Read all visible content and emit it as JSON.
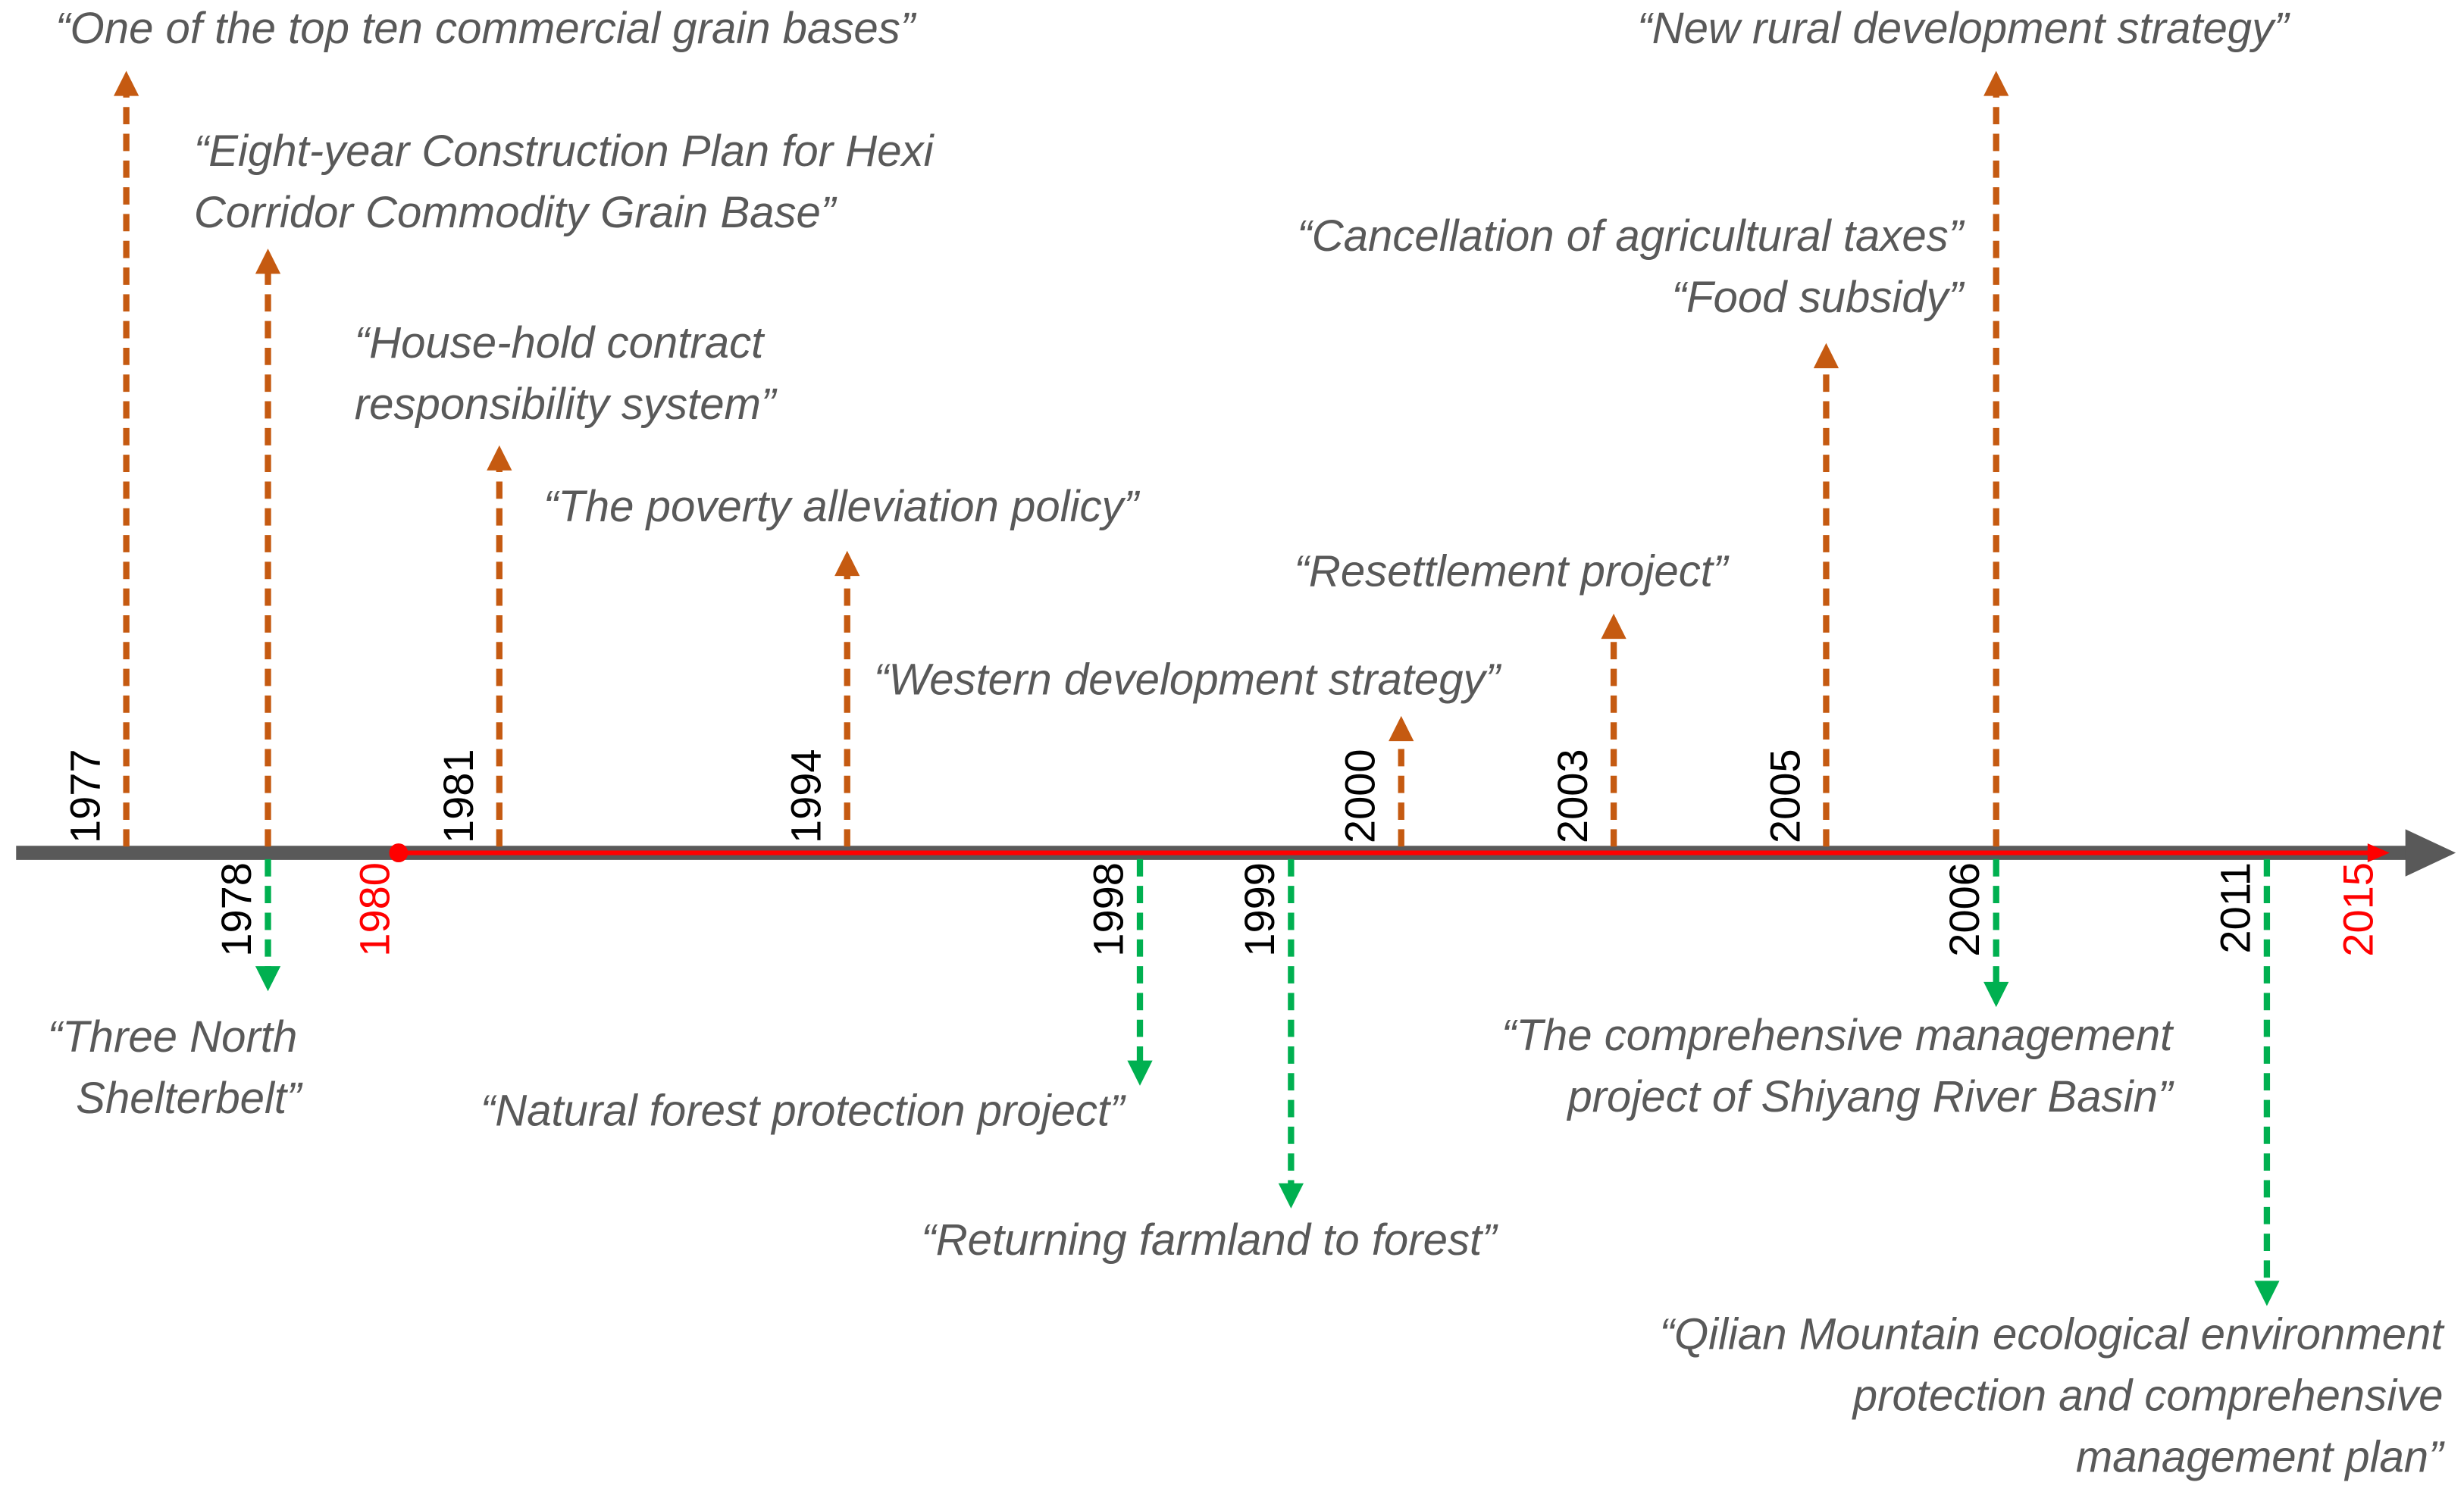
{
  "axis": {
    "start": "1980",
    "end": "2015"
  },
  "events": [
    {
      "year": "1977",
      "up": [
        "“One of the top ten commercial grain bases”"
      ]
    },
    {
      "year": "1978",
      "up": [
        "“Eight-year Construction Plan for Hexi",
        "Corridor Commodity Grain Base”"
      ],
      "down": [
        "“Three North",
        "Shelterbelt”"
      ]
    },
    {
      "year": "1981",
      "up": [
        "“House-hold contract",
        "responsibility system”"
      ]
    },
    {
      "year": "1994",
      "up": [
        "“The poverty alleviation policy”"
      ]
    },
    {
      "year": "1998",
      "down": [
        "“Natural forest protection project”"
      ]
    },
    {
      "year": "1999",
      "down": [
        "“Returning farmland to forest”"
      ]
    },
    {
      "year": "2000",
      "up": [
        "“Western development strategy”"
      ]
    },
    {
      "year": "2003",
      "up": [
        "“Resettlement project”"
      ]
    },
    {
      "year": "2005",
      "up": [
        "“Cancellation of agricultural taxes”",
        "“Food subsidy”"
      ]
    },
    {
      "year": "2006",
      "up": [
        "“New rural development strategy”"
      ],
      "down": [
        "“The comprehensive management",
        "project of Shiyang River Basin”"
      ]
    },
    {
      "year": "2011",
      "down": [
        "“Qilian Mountain ecological environment",
        "protection and comprehensive",
        "management plan”"
      ]
    }
  ]
}
